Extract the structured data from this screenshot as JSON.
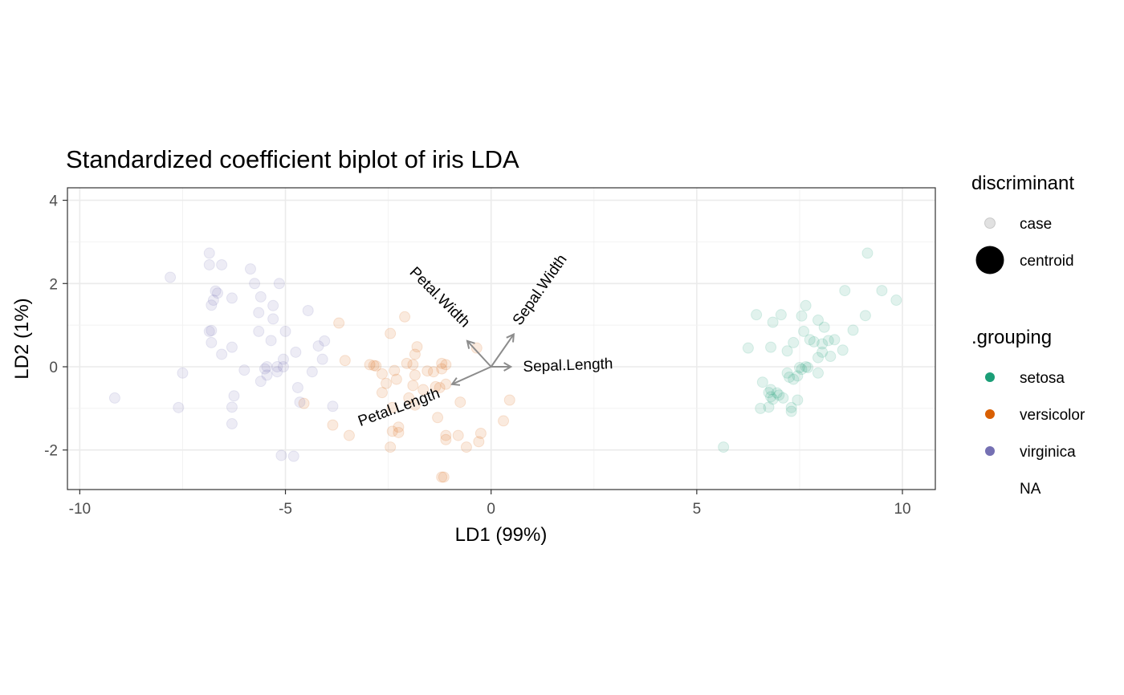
{
  "chart_data": {
    "type": "scatter",
    "title": "Standardized coefficient biplot of iris LDA",
    "xlabel": "LD1 (99%)",
    "ylabel": "LD2 (1%)",
    "xlim": [
      -10.3,
      10.8
    ],
    "ylim": [
      -2.95,
      4.3
    ],
    "x_ticks": [
      -10,
      -5,
      0,
      5,
      10
    ],
    "x_tick_labels": [
      "-10",
      "-5",
      "0",
      "5",
      "10"
    ],
    "y_ticks": [
      -2,
      0,
      2,
      4
    ],
    "y_tick_labels": [
      "-2",
      "0",
      "2",
      "4"
    ],
    "grid": true,
    "legend_position": "right",
    "legend": {
      "discriminant": {
        "title": "discriminant",
        "items": [
          "case",
          "centroid"
        ]
      },
      "grouping": {
        "title": ".grouping",
        "items": [
          {
            "label": "setosa",
            "color": "#1b9e77"
          },
          {
            "label": "versicolor",
            "color": "#d95f02"
          },
          {
            "label": "virginica",
            "color": "#7570b3"
          },
          {
            "label": "NA",
            "color": ""
          }
        ]
      }
    },
    "vectors": [
      {
        "name": "Sepal.Length",
        "x": 0.48,
        "y": 0.0
      },
      {
        "name": "Sepal.Width",
        "x": 0.55,
        "y": 0.78
      },
      {
        "name": "Petal.Length",
        "x": -0.95,
        "y": -0.42
      },
      {
        "name": "Petal.Width",
        "x": -0.58,
        "y": 0.62
      }
    ],
    "series": [
      {
        "name": "setosa",
        "color": "#1b9e77",
        "points": [
          [
            9.15,
            2.73
          ],
          [
            9.5,
            1.83
          ],
          [
            9.85,
            1.6
          ],
          [
            8.6,
            1.83
          ],
          [
            9.1,
            1.23
          ],
          [
            8.8,
            0.88
          ],
          [
            8.35,
            0.65
          ],
          [
            8.2,
            0.63
          ],
          [
            8.55,
            0.4
          ],
          [
            8.25,
            0.25
          ],
          [
            8.1,
            0.95
          ],
          [
            8.05,
            0.35
          ],
          [
            7.95,
            0.22
          ],
          [
            7.95,
            1.12
          ],
          [
            7.95,
            -0.15
          ],
          [
            8.05,
            0.55
          ],
          [
            7.85,
            0.6
          ],
          [
            7.75,
            0.65
          ],
          [
            7.6,
            0.85
          ],
          [
            7.7,
            -0.02
          ],
          [
            7.65,
            0.0
          ],
          [
            7.55,
            -0.06
          ],
          [
            7.45,
            -0.22
          ],
          [
            7.5,
            -0.02
          ],
          [
            7.35,
            -0.3
          ],
          [
            7.45,
            -0.8
          ],
          [
            7.3,
            -0.98
          ],
          [
            7.3,
            -1.07
          ],
          [
            7.25,
            -0.25
          ],
          [
            7.2,
            0.38
          ],
          [
            7.2,
            -0.15
          ],
          [
            7.1,
            -0.75
          ],
          [
            7.0,
            -0.68
          ],
          [
            6.95,
            -0.63
          ],
          [
            6.85,
            -0.78
          ],
          [
            6.8,
            -0.72
          ],
          [
            6.8,
            -0.55
          ],
          [
            6.75,
            -0.62
          ],
          [
            6.75,
            -0.97
          ],
          [
            6.6,
            -0.37
          ],
          [
            6.55,
            -1.0
          ],
          [
            6.45,
            1.25
          ],
          [
            6.25,
            0.45
          ],
          [
            6.8,
            0.47
          ],
          [
            6.85,
            1.07
          ],
          [
            7.05,
            1.25
          ],
          [
            7.35,
            0.58
          ],
          [
            7.55,
            1.22
          ],
          [
            7.65,
            1.47
          ],
          [
            5.65,
            -1.93
          ]
        ]
      },
      {
        "name": "versicolor",
        "color": "#d95f02",
        "points": [
          [
            -3.7,
            1.05
          ],
          [
            -2.45,
            0.8
          ],
          [
            -2.1,
            1.2
          ],
          [
            -1.8,
            0.48
          ],
          [
            -1.85,
            0.3
          ],
          [
            -2.35,
            -0.09
          ],
          [
            -2.3,
            -0.3
          ],
          [
            -2.05,
            0.08
          ],
          [
            -2.95,
            0.05
          ],
          [
            -2.8,
            0.02
          ],
          [
            -2.65,
            -0.17
          ],
          [
            -2.55,
            -0.4
          ],
          [
            -2.65,
            -0.62
          ],
          [
            -1.9,
            0.05
          ],
          [
            -1.85,
            -0.2
          ],
          [
            -1.55,
            -0.1
          ],
          [
            -1.4,
            -0.12
          ],
          [
            -1.35,
            -0.48
          ],
          [
            -1.2,
            -0.05
          ],
          [
            -1.2,
            0.08
          ],
          [
            -1.25,
            -0.5
          ],
          [
            -1.1,
            -0.42
          ],
          [
            -1.9,
            -0.45
          ],
          [
            -2.0,
            -0.75
          ],
          [
            -2.4,
            -0.98
          ],
          [
            -1.85,
            -0.92
          ],
          [
            -1.3,
            -1.22
          ],
          [
            -1.1,
            -1.65
          ],
          [
            -1.1,
            -1.75
          ],
          [
            -0.8,
            -1.65
          ],
          [
            -0.75,
            -0.85
          ],
          [
            -0.6,
            -1.93
          ],
          [
            -0.3,
            -1.8
          ],
          [
            -0.25,
            -1.6
          ],
          [
            0.3,
            -1.3
          ],
          [
            0.45,
            -0.8
          ],
          [
            -0.35,
            0.45
          ],
          [
            -2.25,
            -1.45
          ],
          [
            -2.25,
            -1.58
          ],
          [
            -2.4,
            -1.55
          ],
          [
            -2.45,
            -1.93
          ],
          [
            -3.55,
            0.15
          ],
          [
            -3.45,
            -1.65
          ],
          [
            -3.85,
            -1.4
          ],
          [
            -4.55,
            -0.88
          ],
          [
            -2.85,
            0.03
          ],
          [
            -1.2,
            -2.65
          ],
          [
            -1.15,
            -2.65
          ],
          [
            -1.1,
            0.05
          ],
          [
            -1.65,
            -0.55
          ]
        ]
      },
      {
        "name": "virginica",
        "color": "#7570b3",
        "points": [
          [
            -6.85,
            2.73
          ],
          [
            -6.85,
            2.45
          ],
          [
            -6.55,
            2.45
          ],
          [
            -5.85,
            2.35
          ],
          [
            -5.75,
            2.0
          ],
          [
            -5.15,
            2.0
          ],
          [
            -7.8,
            2.15
          ],
          [
            -6.7,
            1.82
          ],
          [
            -6.65,
            1.77
          ],
          [
            -6.3,
            1.65
          ],
          [
            -6.75,
            1.6
          ],
          [
            -6.8,
            1.48
          ],
          [
            -5.6,
            1.68
          ],
          [
            -5.3,
            1.47
          ],
          [
            -5.65,
            1.3
          ],
          [
            -4.45,
            1.35
          ],
          [
            -5.3,
            1.15
          ],
          [
            -6.85,
            0.85
          ],
          [
            -6.8,
            0.87
          ],
          [
            -5.65,
            0.85
          ],
          [
            -5.0,
            0.85
          ],
          [
            -6.8,
            0.58
          ],
          [
            -5.35,
            0.63
          ],
          [
            -6.3,
            0.47
          ],
          [
            -6.55,
            0.3
          ],
          [
            -4.75,
            0.35
          ],
          [
            -4.2,
            0.5
          ],
          [
            -4.05,
            0.62
          ],
          [
            -4.1,
            0.18
          ],
          [
            -5.05,
            0.18
          ],
          [
            -5.05,
            0.0
          ],
          [
            -5.2,
            0.0
          ],
          [
            -5.45,
            0.0
          ],
          [
            -5.5,
            -0.05
          ],
          [
            -5.2,
            -0.12
          ],
          [
            -5.45,
            -0.2
          ],
          [
            -5.6,
            -0.35
          ],
          [
            -4.35,
            -0.12
          ],
          [
            -4.7,
            -0.5
          ],
          [
            -6.0,
            -0.08
          ],
          [
            -7.5,
            -0.15
          ],
          [
            -9.15,
            -0.75
          ],
          [
            -7.6,
            -0.98
          ],
          [
            -6.3,
            -0.97
          ],
          [
            -6.25,
            -0.7
          ],
          [
            -6.3,
            -1.37
          ],
          [
            -4.65,
            -0.85
          ],
          [
            -3.85,
            -0.95
          ],
          [
            -5.1,
            -2.13
          ],
          [
            -4.8,
            -2.15
          ]
        ]
      }
    ]
  }
}
